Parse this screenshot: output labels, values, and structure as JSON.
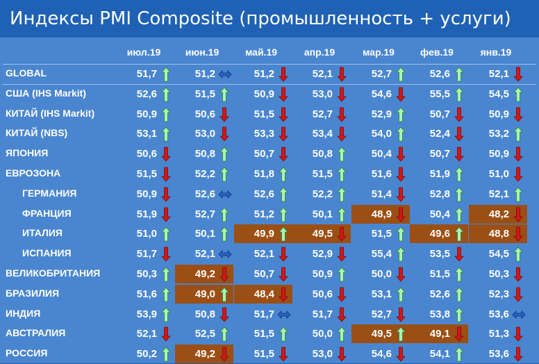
{
  "title": "Индексы PMI Composite (промышленность + услуги)",
  "columns": [
    "июл.19",
    "июн.19",
    "май.19",
    "апр.19",
    "мар.19",
    "фев.19",
    "янв.19"
  ],
  "colors": {
    "up": "#a8f5b0",
    "down": "#d01717",
    "flat": "#2a64c8",
    "highlight": "#9b4f14"
  },
  "rows": [
    {
      "name": "GLOBAL",
      "indent": false,
      "cells": [
        {
          "v": "51,7",
          "a": "up"
        },
        {
          "v": "51,2",
          "a": "flat"
        },
        {
          "v": "51,2",
          "a": "down"
        },
        {
          "v": "52,1",
          "a": "down"
        },
        {
          "v": "52,7",
          "a": "up"
        },
        {
          "v": "52,6",
          "a": "up"
        },
        {
          "v": "52,1",
          "a": "down"
        }
      ]
    },
    {
      "name": "США (IHS Markit)",
      "indent": false,
      "cells": [
        {
          "v": "52,6",
          "a": "up"
        },
        {
          "v": "51,5",
          "a": "up"
        },
        {
          "v": "50,9",
          "a": "down"
        },
        {
          "v": "53,0",
          "a": "down"
        },
        {
          "v": "54,6",
          "a": "down"
        },
        {
          "v": "55,5",
          "a": "up"
        },
        {
          "v": "54,5",
          "a": "up"
        }
      ]
    },
    {
      "name": "КИТАЙ (IHS Markit)",
      "indent": false,
      "cells": [
        {
          "v": "50,9",
          "a": "up"
        },
        {
          "v": "50,6",
          "a": "down"
        },
        {
          "v": "51,5",
          "a": "down"
        },
        {
          "v": "52,7",
          "a": "down"
        },
        {
          "v": "52,9",
          "a": "up"
        },
        {
          "v": "50,7",
          "a": "down"
        },
        {
          "v": "50,9",
          "a": "down"
        }
      ]
    },
    {
      "name": "КИТАЙ (NBS)",
      "indent": false,
      "cells": [
        {
          "v": "53,1",
          "a": "up"
        },
        {
          "v": "53,0",
          "a": "down"
        },
        {
          "v": "53,3",
          "a": "down"
        },
        {
          "v": "53,4",
          "a": "down"
        },
        {
          "v": "54,0",
          "a": "up"
        },
        {
          "v": "52,4",
          "a": "down"
        },
        {
          "v": "53,2",
          "a": "up"
        }
      ]
    },
    {
      "name": "ЯПОНИЯ",
      "indent": false,
      "cells": [
        {
          "v": "50,6",
          "a": "down"
        },
        {
          "v": "50,8",
          "a": "up"
        },
        {
          "v": "50,7",
          "a": "down"
        },
        {
          "v": "50,8",
          "a": "up"
        },
        {
          "v": "50,4",
          "a": "down"
        },
        {
          "v": "50,7",
          "a": "down"
        },
        {
          "v": "50,9",
          "a": "down"
        }
      ]
    },
    {
      "name": "ЕВРОЗОНА",
      "indent": false,
      "cells": [
        {
          "v": "51,5",
          "a": "down"
        },
        {
          "v": "52,2",
          "a": "up"
        },
        {
          "v": "51,8",
          "a": "up"
        },
        {
          "v": "51,5",
          "a": "up"
        },
        {
          "v": "51,6",
          "a": "down"
        },
        {
          "v": "51,9",
          "a": "up"
        },
        {
          "v": "51,0",
          "a": "down"
        }
      ]
    },
    {
      "name": "ГЕРМАНИЯ",
      "indent": true,
      "cells": [
        {
          "v": "50,9",
          "a": "down"
        },
        {
          "v": "52,6",
          "a": "flat"
        },
        {
          "v": "52,6",
          "a": "up"
        },
        {
          "v": "52,2",
          "a": "up"
        },
        {
          "v": "51,4",
          "a": "down"
        },
        {
          "v": "52,8",
          "a": "up"
        },
        {
          "v": "52,1",
          "a": "up"
        }
      ]
    },
    {
      "name": "ФРАНЦИЯ",
      "indent": true,
      "cells": [
        {
          "v": "51,9",
          "a": "down"
        },
        {
          "v": "52,7",
          "a": "up"
        },
        {
          "v": "51,2",
          "a": "up"
        },
        {
          "v": "50,1",
          "a": "up"
        },
        {
          "v": "48,9",
          "a": "down",
          "hl": true
        },
        {
          "v": "50,4",
          "a": "up"
        },
        {
          "v": "48,2",
          "a": "down",
          "hl": true
        }
      ]
    },
    {
      "name": "ИТАЛИЯ",
      "indent": true,
      "cells": [
        {
          "v": "51,0",
          "a": "up"
        },
        {
          "v": "50,1",
          "a": "up"
        },
        {
          "v": "49,9",
          "a": "up",
          "hl": true
        },
        {
          "v": "49,5",
          "a": "down",
          "hl": true
        },
        {
          "v": "51,5",
          "a": "up"
        },
        {
          "v": "49,6",
          "a": "up",
          "hl": true
        },
        {
          "v": "48,8",
          "a": "down",
          "hl": true
        }
      ]
    },
    {
      "name": "ИСПАНИЯ",
      "indent": true,
      "cells": [
        {
          "v": "51,7",
          "a": "down"
        },
        {
          "v": "52,1",
          "a": "flat"
        },
        {
          "v": "52,1",
          "a": "down"
        },
        {
          "v": "52,9",
          "a": "down"
        },
        {
          "v": "55,4",
          "a": "up"
        },
        {
          "v": "53,5",
          "a": "down"
        },
        {
          "v": "54,5",
          "a": "up"
        }
      ]
    },
    {
      "name": "ВЕЛИКОБРИТАНИЯ",
      "indent": false,
      "cells": [
        {
          "v": "50,3",
          "a": "up"
        },
        {
          "v": "49,2",
          "a": "down",
          "hl": true
        },
        {
          "v": "50,7",
          "a": "down"
        },
        {
          "v": "50,9",
          "a": "up"
        },
        {
          "v": "50,0",
          "a": "down"
        },
        {
          "v": "51,5",
          "a": "up"
        },
        {
          "v": "50,3",
          "a": "down"
        }
      ]
    },
    {
      "name": "БРАЗИЛИЯ",
      "indent": false,
      "cells": [
        {
          "v": "51,6",
          "a": "up"
        },
        {
          "v": "49,0",
          "a": "up",
          "hl": true
        },
        {
          "v": "48,4",
          "a": "down",
          "hl": true
        },
        {
          "v": "50,6",
          "a": "down"
        },
        {
          "v": "53,1",
          "a": "up"
        },
        {
          "v": "52,6",
          "a": "up"
        },
        {
          "v": "52,3",
          "a": "down"
        }
      ]
    },
    {
      "name": "ИНДИЯ",
      "indent": false,
      "cells": [
        {
          "v": "53,9",
          "a": "up"
        },
        {
          "v": "50,8",
          "a": "down"
        },
        {
          "v": "51,7",
          "a": "flat"
        },
        {
          "v": "51,7",
          "a": "down"
        },
        {
          "v": "52,7",
          "a": "down"
        },
        {
          "v": "53,8",
          "a": "up"
        },
        {
          "v": "53,6",
          "a": "flat"
        }
      ]
    },
    {
      "name": "АВСТРАЛИЯ",
      "indent": false,
      "cells": [
        {
          "v": "52,1",
          "a": "down"
        },
        {
          "v": "52,5",
          "a": "up"
        },
        {
          "v": "51,5",
          "a": "up"
        },
        {
          "v": "50,0",
          "a": "up"
        },
        {
          "v": "49,5",
          "a": "up",
          "hl": true
        },
        {
          "v": "49,1",
          "a": "down",
          "hl": true
        },
        {
          "v": "51,3",
          "a": "down"
        }
      ]
    },
    {
      "name": "РОССИЯ",
      "indent": false,
      "cells": [
        {
          "v": "50,2",
          "a": "up"
        },
        {
          "v": "49,2",
          "a": "down",
          "hl": true
        },
        {
          "v": "51,5",
          "a": "down"
        },
        {
          "v": "53,0",
          "a": "down"
        },
        {
          "v": "54,6",
          "a": "down"
        },
        {
          "v": "54,1",
          "a": "up"
        },
        {
          "v": "53,6",
          "a": "down"
        }
      ]
    }
  ]
}
